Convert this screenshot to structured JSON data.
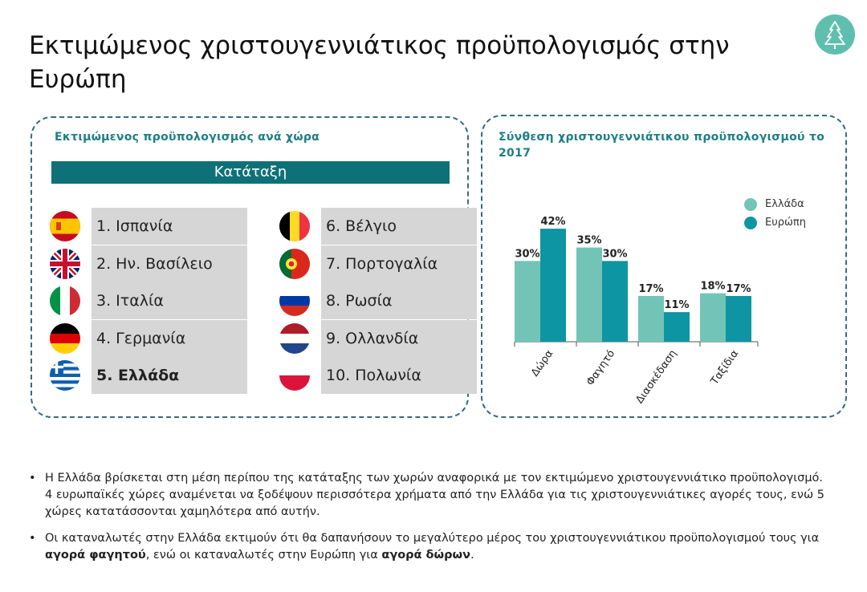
{
  "title": "Εκτιμώμενος χριστουγεννιάτικος προϋπολογισμός στην Ευρώπη",
  "logo_icon": "tree-icon",
  "left_panel": {
    "heading": "Εκτιμώμενος  προϋπολογισμός  ανά  χώρα",
    "rank_header": "Κατάταξη",
    "items": [
      {
        "label": "1. Ισπανία",
        "flag": "spain-flag-icon",
        "highlight": false
      },
      {
        "label": "2. Ην. Βασίλειο",
        "flag": "uk-flag-icon",
        "highlight": false
      },
      {
        "label": "3. Ιταλία",
        "flag": "italy-flag-icon",
        "highlight": false
      },
      {
        "label": "4. Γερμανία",
        "flag": "germany-flag-icon",
        "highlight": false
      },
      {
        "label": "5. Ελλάδα",
        "flag": "greece-flag-icon",
        "highlight": true
      },
      {
        "label": "6. Βέλγιο",
        "flag": "belgium-flag-icon",
        "highlight": false
      },
      {
        "label": "7. Πορτογαλία",
        "flag": "portugal-flag-icon",
        "highlight": false
      },
      {
        "label": "8. Ρωσία",
        "flag": "russia-flag-icon",
        "highlight": false
      },
      {
        "label": "9. Ολλανδία",
        "flag": "netherlands-flag-icon",
        "highlight": false
      },
      {
        "label": "10. Πολωνία",
        "flag": "poland-flag-icon",
        "highlight": false
      }
    ]
  },
  "right_panel": {
    "heading": "Σύνθεση  χριστουγεννιάτικου  προϋπολογισμού  το 2017"
  },
  "chart_data": {
    "type": "bar",
    "title": "Σύνθεση  χριστουγεννιάτικου  προϋπολογισμού  το 2017",
    "categories": [
      "Δώρα",
      "Φαγητό",
      "Διασκέδαση",
      "Ταξίδια"
    ],
    "series": [
      {
        "name": "Ελλάδα",
        "values": [
          30,
          35,
          17,
          18
        ],
        "labels": [
          "30%",
          "35%",
          "17%",
          "18%"
        ],
        "color": "#72c4b6"
      },
      {
        "name": "Ευρώπη",
        "values": [
          42,
          30,
          11,
          17
        ],
        "labels": [
          "42%",
          "30%",
          "11%",
          "17%"
        ],
        "color": "#0e95a3"
      }
    ],
    "ylim": [
      0,
      45
    ],
    "grid": false,
    "legend": "top-right",
    "unit": "%"
  },
  "notes": [
    {
      "parts": [
        {
          "text": "Η Ελλάδα βρίσκεται στη μέση περίπου της κατάταξης των χωρών αναφορικά με τον εκτιμώμενο χριστουγεννιάτικο προϋπολογισμό. 4 ευρωπαϊκές χώρες αναμένεται να ξοδέψουν περισσότερα χρήματα από την Ελλάδα για τις χριστουγεννιάτικες αγορές τους, ενώ 5 χώρες κατατάσσονται  χαμηλότερα από αυτήν.",
          "bold": false
        }
      ]
    },
    {
      "parts": [
        {
          "text": "Οι καταναλωτές στην Ελλάδα εκτιμούν ότι θα δαπανήσουν το μεγαλύτερο μέρος του χριστουγεννιάτικου προϋπολογισμού τους για ",
          "bold": false
        },
        {
          "text": "αγορά φαγητού",
          "bold": true
        },
        {
          "text": ",  ενώ οι καταναλωτές  στην Ευρώπη για ",
          "bold": false
        },
        {
          "text": "αγορά δώρων",
          "bold": true
        },
        {
          "text": ".",
          "bold": false
        }
      ]
    }
  ]
}
